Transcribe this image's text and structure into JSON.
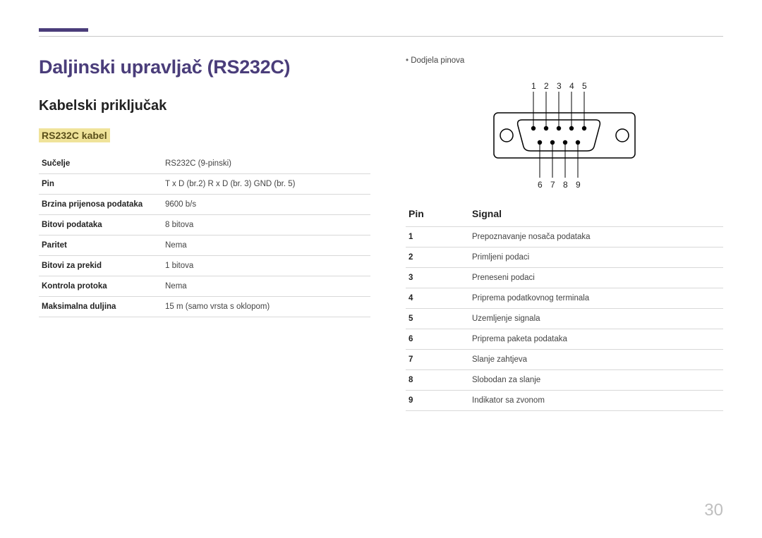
{
  "page_number": "30",
  "title": "Daljinski upravljač (RS232C)",
  "subtitle": "Kabelski priključak",
  "section_label": "RS232C kabel",
  "spec_table": {
    "rows": [
      {
        "label": "Sučelje",
        "value": "RS232C (9-pinski)"
      },
      {
        "label": "Pin",
        "value": "T x D (br.2) R x D (br. 3) GND (br. 5)"
      },
      {
        "label": "Brzina prijenosa podataka",
        "value": "9600 b/s"
      },
      {
        "label": "Bitovi podataka",
        "value": "8 bitova"
      },
      {
        "label": "Paritet",
        "value": "Nema"
      },
      {
        "label": "Bitovi za prekid",
        "value": "1 bitova"
      },
      {
        "label": "Kontrola protoka",
        "value": "Nema"
      },
      {
        "label": "Maksimalna duljina",
        "value": "15 m (samo vrsta s oklopom)"
      }
    ]
  },
  "right": {
    "bullet": "Dodjela pinova",
    "top_labels": [
      "1",
      "2",
      "3",
      "4",
      "5"
    ],
    "bottom_labels": [
      "6",
      "7",
      "8",
      "9"
    ],
    "signal_table": {
      "header_pin": "Pin",
      "header_signal": "Signal",
      "rows": [
        {
          "pin": "1",
          "signal": "Prepoznavanje nosača podataka"
        },
        {
          "pin": "2",
          "signal": "Primljeni podaci"
        },
        {
          "pin": "3",
          "signal": "Preneseni podaci"
        },
        {
          "pin": "4",
          "signal": "Priprema podatkovnog terminala"
        },
        {
          "pin": "5",
          "signal": "Uzemljenje signala"
        },
        {
          "pin": "6",
          "signal": "Priprema paketa podataka"
        },
        {
          "pin": "7",
          "signal": "Slanje zahtjeva"
        },
        {
          "pin": "8",
          "signal": "Slobodan za slanje"
        },
        {
          "pin": "9",
          "signal": "Indikator sa zvonom"
        }
      ]
    }
  },
  "diagram": {
    "stroke": "#000000",
    "fill": "#000000",
    "pin_radius": 3.2
  }
}
